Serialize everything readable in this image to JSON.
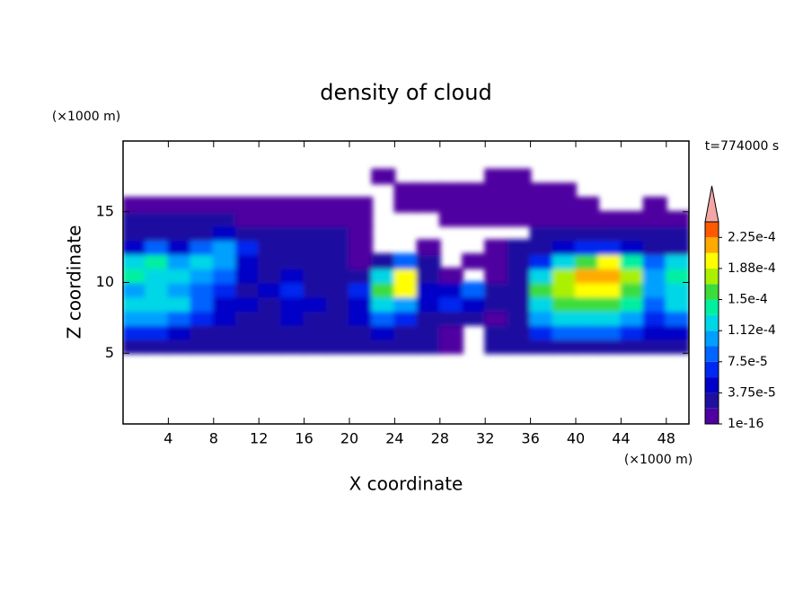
{
  "chart_data": {
    "type": "contour",
    "title": "density of cloud",
    "xlabel": "X coordinate",
    "ylabel": "Z coordinate",
    "xunit": "(×1000 m)",
    "yunit": "(×1000 m)",
    "time_label": "t=774000 s",
    "xlim": [
      0,
      50
    ],
    "xticks": [
      4,
      8,
      12,
      16,
      20,
      24,
      28,
      32,
      36,
      40,
      44,
      48
    ],
    "ylim": [
      0,
      20
    ],
    "yticks": [
      5,
      10,
      15
    ],
    "x": [
      1,
      3,
      5,
      7,
      9,
      11,
      13,
      15,
      17,
      19,
      21,
      23,
      25,
      27,
      29,
      31,
      33,
      35,
      37,
      39,
      41,
      43,
      45,
      47,
      49
    ],
    "y": [
      5.5,
      6.5,
      7.5,
      8.5,
      9.5,
      10.5,
      11.5,
      12.5,
      13.5,
      14.5,
      15.5,
      16.5,
      17.5
    ],
    "z": [
      [
        3e-05,
        3e-05,
        2e-05,
        2e-05,
        2e-05,
        2e-05,
        2e-05,
        2e-05,
        2e-05,
        2e-05,
        2e-05,
        3e-05,
        2e-05,
        2e-05,
        1e-05,
        null,
        2e-05,
        3e-05,
        3e-05,
        3e-05,
        3e-05,
        3e-05,
        3e-05,
        3e-05,
        3e-05
      ],
      [
        6e-05,
        6e-05,
        5e-05,
        3e-05,
        3e-05,
        2e-05,
        2e-05,
        2e-05,
        2e-05,
        2e-05,
        3e-05,
        4e-05,
        3e-05,
        2e-05,
        1e-05,
        null,
        2e-05,
        3e-05,
        7e-05,
        8e-05,
        8e-05,
        8e-05,
        7e-05,
        4e-05,
        5e-05
      ],
      [
        0.0001,
        0.0001,
        9e-05,
        6e-05,
        4e-05,
        3e-05,
        3e-05,
        4e-05,
        3e-05,
        2e-05,
        5e-05,
        9e-05,
        6e-05,
        3e-05,
        3e-05,
        2e-05,
        1e-05,
        2e-05,
        0.00011,
        0.00012,
        0.00012,
        0.00012,
        0.00011,
        6e-05,
        8e-05
      ],
      [
        0.00013,
        0.00012,
        0.00012,
        9e-05,
        5e-05,
        4e-05,
        3e-05,
        5e-05,
        4e-05,
        2e-05,
        5e-05,
        0.00013,
        0.00011,
        5e-05,
        6e-05,
        4e-05,
        2e-05,
        2e-05,
        0.00013,
        0.00015,
        0.00015,
        0.00015,
        0.00014,
        9e-05,
        0.00012
      ],
      [
        0.00011,
        0.00013,
        0.00011,
        9e-05,
        7e-05,
        3e-05,
        5e-05,
        6e-05,
        3e-05,
        3e-05,
        6e-05,
        0.00016,
        0.0002,
        4e-05,
        4e-05,
        8e-05,
        3e-05,
        2e-05,
        0.00015,
        0.00018,
        0.00019,
        0.00019,
        0.00016,
        0.0001,
        0.00012
      ],
      [
        0.00014,
        0.00012,
        0.00013,
        0.0001,
        8e-05,
        4e-05,
        3e-05,
        5e-05,
        3e-05,
        2e-05,
        3e-05,
        0.00012,
        0.0002,
        2e-05,
        1e-05,
        null,
        1e-05,
        3e-05,
        0.00012,
        0.00017,
        0.00021,
        0.00022,
        0.00018,
        0.0001,
        0.00014
      ],
      [
        0.00012,
        0.00014,
        0.0001,
        0.00012,
        0.0001,
        5e-05,
        3e-05,
        2e-05,
        3e-05,
        2e-05,
        1e-05,
        2e-05,
        8e-05,
        3e-05,
        null,
        1e-05,
        1e-05,
        3e-05,
        6e-05,
        0.00012,
        0.00016,
        0.00019,
        0.00014,
        8e-05,
        0.00012
      ],
      [
        5e-05,
        8e-05,
        5e-05,
        8e-05,
        0.00011,
        6e-05,
        3e-05,
        3e-05,
        2e-05,
        2e-05,
        1e-05,
        null,
        null,
        1e-05,
        null,
        null,
        1e-05,
        2e-05,
        3e-05,
        5e-05,
        6e-05,
        6e-05,
        5e-05,
        3e-05,
        3e-05
      ],
      [
        3e-05,
        3e-05,
        3e-05,
        3e-05,
        5e-05,
        3e-05,
        2e-05,
        2e-05,
        2e-05,
        2e-05,
        1e-05,
        null,
        null,
        null,
        null,
        null,
        null,
        null,
        2e-05,
        2e-05,
        2e-05,
        2e-05,
        2e-05,
        2e-05,
        2e-05
      ],
      [
        2e-05,
        2e-05,
        2e-05,
        2e-05,
        2e-05,
        1e-05,
        1e-05,
        1e-05,
        1e-05,
        1e-05,
        1e-05,
        null,
        null,
        null,
        1e-05,
        1e-05,
        1e-05,
        1e-05,
        1e-05,
        1e-05,
        1e-05,
        1e-05,
        1e-05,
        1e-05,
        1e-05
      ],
      [
        1e-05,
        1e-05,
        1e-05,
        1e-05,
        1e-05,
        1e-05,
        1e-05,
        1e-05,
        1e-05,
        1e-05,
        1e-05,
        null,
        1e-05,
        1e-05,
        1e-05,
        1e-05,
        1e-05,
        1e-05,
        1e-05,
        1e-05,
        1e-05,
        null,
        null,
        1e-05,
        null
      ],
      [
        null,
        null,
        null,
        null,
        null,
        null,
        null,
        null,
        null,
        null,
        null,
        null,
        1e-05,
        1e-05,
        1e-05,
        1e-05,
        1e-05,
        1e-05,
        1e-05,
        1e-05,
        null,
        null,
        null,
        null,
        null
      ],
      [
        null,
        null,
        null,
        null,
        null,
        null,
        null,
        null,
        null,
        null,
        null,
        1e-05,
        null,
        null,
        null,
        null,
        1e-05,
        1e-05,
        null,
        null,
        null,
        null,
        null,
        null,
        null
      ]
    ],
    "levels": [
      1e-16,
      1.875e-05,
      3.75e-05,
      5.625e-05,
      7.5e-05,
      9.375e-05,
      0.0001125,
      0.00013125,
      0.00015,
      0.00016875,
      0.0001875,
      0.00020625,
      0.000225,
      0.00024375
    ],
    "colors": [
      "#5000a0",
      "#1e0fa0",
      "#0000c8",
      "#0028f0",
      "#0064ff",
      "#00a0ff",
      "#00d7e6",
      "#00f0a0",
      "#3cdc3c",
      "#aaf000",
      "#ffff00",
      "#ffaa00",
      "#ff5a00",
      "#ff0000"
    ],
    "extend_color": "#f4a6a6",
    "colorbar_ticks": [
      {
        "value": 1e-16,
        "label": "1e-16"
      },
      {
        "value": 3.75e-05,
        "label": "3.75e-5"
      },
      {
        "value": 7.5e-05,
        "label": "7.5e-5"
      },
      {
        "value": 0.0001125,
        "label": "1.12e-4"
      },
      {
        "value": 0.00015,
        "label": "1.5e-4"
      },
      {
        "value": 0.0001875,
        "label": "1.88e-4"
      },
      {
        "value": 0.000225,
        "label": "2.25e-4"
      }
    ]
  }
}
